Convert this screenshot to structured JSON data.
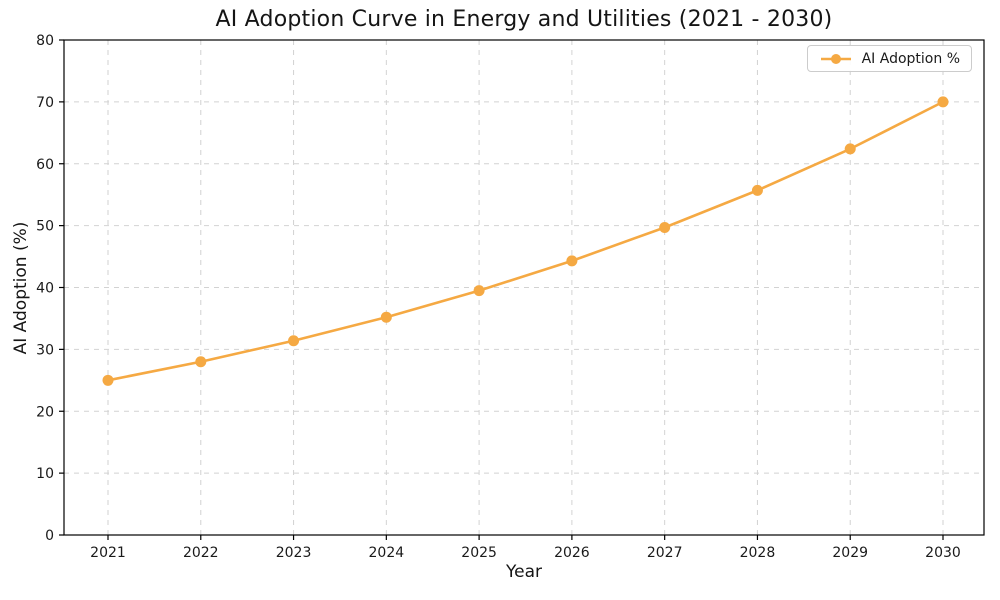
{
  "chart_data": {
    "type": "line",
    "title": "AI Adoption Curve in Energy and Utilities (2021 - 2030)",
    "xlabel": "Year",
    "ylabel": "AI Adoption (%)",
    "categories": [
      "2021",
      "2022",
      "2023",
      "2024",
      "2025",
      "2026",
      "2027",
      "2028",
      "2029",
      "2030"
    ],
    "series": [
      {
        "name": "AI Adoption %",
        "color": "#F5A943",
        "marker": "circle",
        "values": [
          25.0,
          28.0,
          31.4,
          35.2,
          39.5,
          44.3,
          49.7,
          55.7,
          62.4,
          70.0
        ]
      }
    ],
    "ylim": [
      0,
      80
    ],
    "yticks": [
      0,
      10,
      20,
      30,
      40,
      50,
      60,
      70,
      80
    ],
    "grid": true,
    "grid_linestyle": "dashed",
    "legend_position": "upper right"
  },
  "colors": {
    "accent": "#F5A943",
    "grid": "#d2d2d2",
    "spine": "#000000",
    "text": "#1a1a1a",
    "background": "#ffffff"
  }
}
